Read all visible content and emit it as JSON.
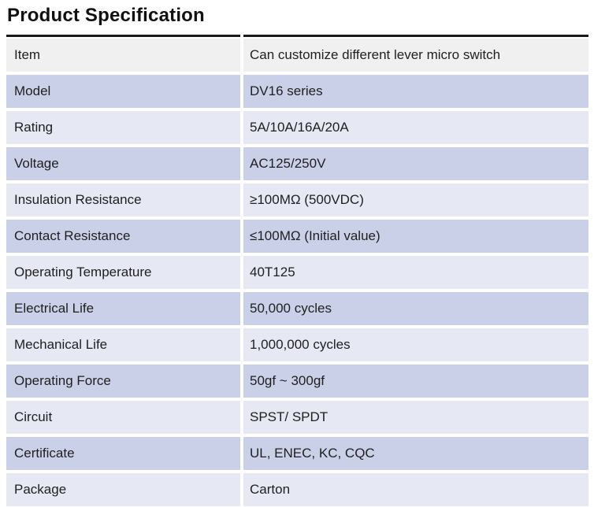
{
  "page": {
    "title": "Product Specification"
  },
  "table": {
    "column_keys": [
      "label",
      "value"
    ],
    "rows": [
      {
        "label": "Item",
        "value": "Can customize different lever micro switch"
      },
      {
        "label": "Model",
        "value": "DV16 series"
      },
      {
        "label": "Rating",
        "value": "5A/10A/16A/20A"
      },
      {
        "label": "Voltage",
        "value": "AC125/250V"
      },
      {
        "label": "Insulation Resistance",
        "value": "≥100MΩ (500VDC)"
      },
      {
        "label": "Contact Resistance",
        "value": "≤100MΩ (Initial value)"
      },
      {
        "label": "Operating Temperature",
        "value": "40T125"
      },
      {
        "label": "Electrical Life",
        "value": "50,000 cycles"
      },
      {
        "label": "Mechanical Life",
        "value": "1,000,000 cycles"
      },
      {
        "label": "Operating Force",
        "value": "50gf ~ 300gf"
      },
      {
        "label": "Circuit",
        "value": "SPST/ SPDT"
      },
      {
        "label": "Certificate",
        "value": "UL, ENEC, KC, CQC"
      },
      {
        "label": "Package",
        "value": "Carton"
      }
    ],
    "colors": {
      "header_row_bg": "#f0f0f0",
      "row_medium_bg": "#cbd0e9",
      "row_light_bg": "#e6e8f4",
      "border": "#1a1a1a",
      "text": "#1f1f1f"
    }
  }
}
